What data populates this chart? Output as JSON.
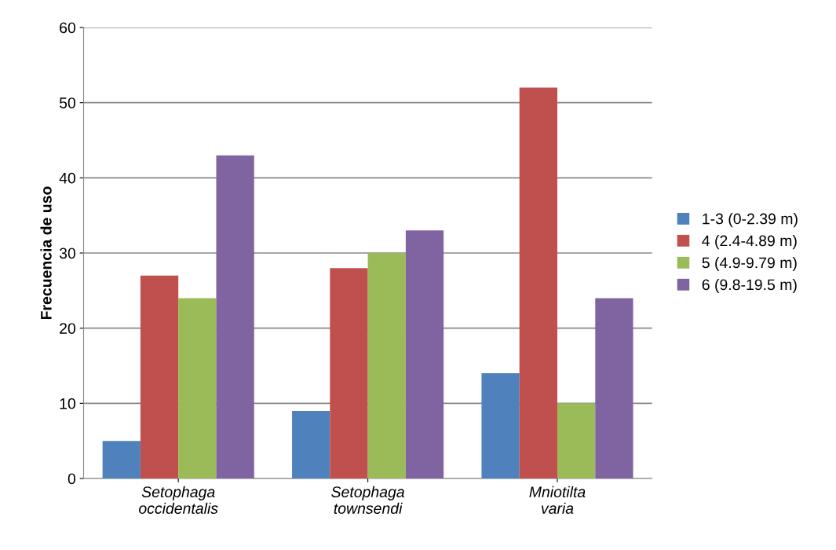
{
  "chart_data": {
    "type": "bar",
    "ylabel": "Frecuencia de uso",
    "categories": [
      "Setophaga occidentalis",
      "Setophaga townsendi",
      "Mniotilta varia"
    ],
    "series": [
      {
        "name": "1-3 (0-2.39 m)",
        "color": "#4f81bd",
        "values": [
          5,
          9,
          14
        ]
      },
      {
        "name": "4 (2.4-4.89 m)",
        "color": "#c0504d",
        "values": [
          27,
          28,
          52
        ]
      },
      {
        "name": "5 (4.9-9.79 m)",
        "color": "#9bbb59",
        "values": [
          24,
          30,
          10
        ]
      },
      {
        "name": "6 (9.8-19.5 m)",
        "color": "#8064a2",
        "values": [
          43,
          33,
          24
        ]
      }
    ],
    "ylim": [
      0,
      60
    ],
    "yticks": [
      0,
      10,
      20,
      30,
      40,
      50,
      60
    ],
    "grid": "y",
    "legend": "right"
  }
}
